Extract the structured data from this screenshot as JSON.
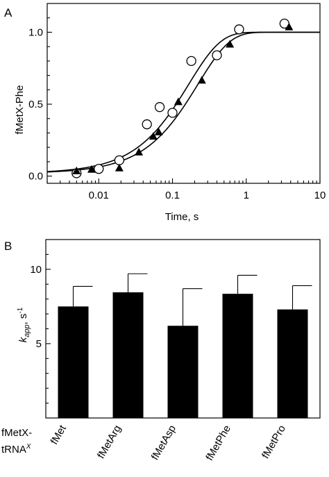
{
  "panels": {
    "a": "A",
    "b": "B"
  },
  "chart_data": [
    {
      "type": "scatter",
      "panel": "A",
      "xlabel": "Time, s",
      "ylabel": "fMetX-Phe",
      "xscale": "log",
      "xlim": [
        0.002,
        10
      ],
      "ylim": [
        -0.05,
        1.2
      ],
      "xticks": [
        0.01,
        0.1,
        1,
        10
      ],
      "xtick_labels": [
        "0.01",
        "0.1",
        "1",
        "10"
      ],
      "yticks": [
        0.0,
        0.5,
        1.0
      ],
      "ytick_labels": [
        "0.0",
        "0.5",
        "1.0"
      ],
      "series": [
        {
          "marker": "open-circle",
          "x": [
            0.005,
            0.01,
            0.019,
            0.045,
            0.067,
            0.1,
            0.18,
            0.4,
            0.8,
            3.3
          ],
          "y": [
            0.02,
            0.05,
            0.11,
            0.36,
            0.48,
            0.44,
            0.8,
            0.84,
            1.02,
            1.06
          ],
          "fit": {
            "k": 6.0,
            "y0": 0.02,
            "plateau": 1.0
          }
        },
        {
          "marker": "filled-triangle",
          "x": [
            0.005,
            0.008,
            0.019,
            0.035,
            0.055,
            0.065,
            0.12,
            0.25,
            0.6,
            3.8
          ],
          "y": [
            0.04,
            0.05,
            0.06,
            0.17,
            0.28,
            0.31,
            0.52,
            0.67,
            0.92,
            1.04
          ],
          "fit": {
            "k": 4.5,
            "y0": 0.02,
            "plateau": 1.0
          }
        }
      ]
    },
    {
      "type": "bar",
      "panel": "B",
      "ylabel_main": "k",
      "ylabel_sub": "app",
      "ylabel_unit": ", s",
      "ylabel_exp": "-1",
      "ylim": [
        0,
        12
      ],
      "yticks": [
        5,
        10
      ],
      "ytick_labels": [
        "5",
        "10"
      ],
      "row_label_line1": "fMetX-",
      "row_label_line2": "tRNA",
      "row_label_sup": "X",
      "categories": [
        "fMet",
        "fMetArg",
        "fMetAsp",
        "fMetPhe",
        "fMetPro"
      ],
      "values": [
        7.5,
        8.45,
        6.2,
        8.35,
        7.3
      ],
      "errors": [
        1.35,
        1.25,
        2.5,
        1.25,
        1.6
      ]
    }
  ]
}
